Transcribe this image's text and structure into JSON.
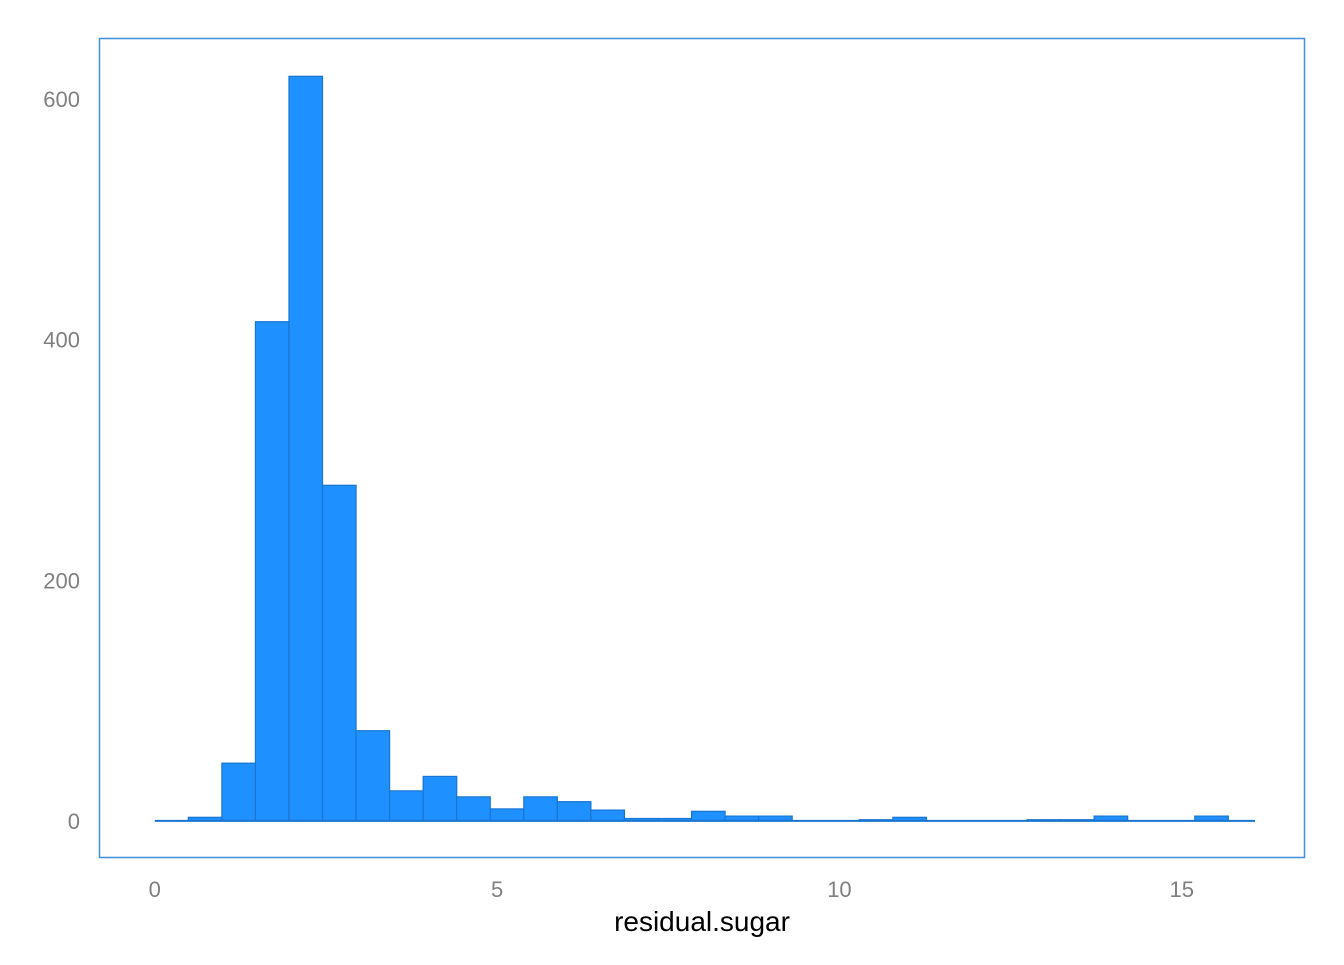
{
  "chart_data": {
    "type": "bar",
    "xlabel": "residual.sugar",
    "ylabel": "",
    "title": "",
    "xlim": [
      -0.8,
      16.8
    ],
    "ylim": [
      -30,
      650
    ],
    "x_ticks": [
      0,
      5,
      10,
      15
    ],
    "x_tick_labels": [
      "0",
      "5",
      "10",
      "15"
    ],
    "y_ticks": [
      0,
      200,
      400,
      600
    ],
    "y_tick_labels": [
      "0",
      "200",
      "400",
      "600"
    ],
    "grid": false,
    "legend": "none",
    "bin_edges": [
      0.0,
      0.49,
      0.98,
      1.47,
      1.96,
      2.45,
      2.94,
      3.43,
      3.92,
      4.41,
      4.9,
      5.39,
      5.88,
      6.37,
      6.86,
      7.35,
      7.84,
      8.33,
      8.82,
      9.31,
      9.8,
      10.29,
      10.78,
      11.27,
      11.76,
      12.25,
      12.74,
      13.23,
      13.72,
      14.21,
      14.7,
      15.19,
      15.68,
      16.07
    ],
    "counts": [
      0,
      3,
      48,
      415,
      619,
      279,
      75,
      25,
      37,
      20,
      10,
      20,
      16,
      9,
      2,
      2,
      8,
      4,
      4,
      0,
      0,
      1,
      3,
      0,
      0,
      0,
      1,
      1,
      4,
      0,
      0,
      4,
      0
    ],
    "colors": {
      "fill": "#1e90ff",
      "outline": "#1a75d1",
      "frame": "#3d8fe0"
    }
  }
}
